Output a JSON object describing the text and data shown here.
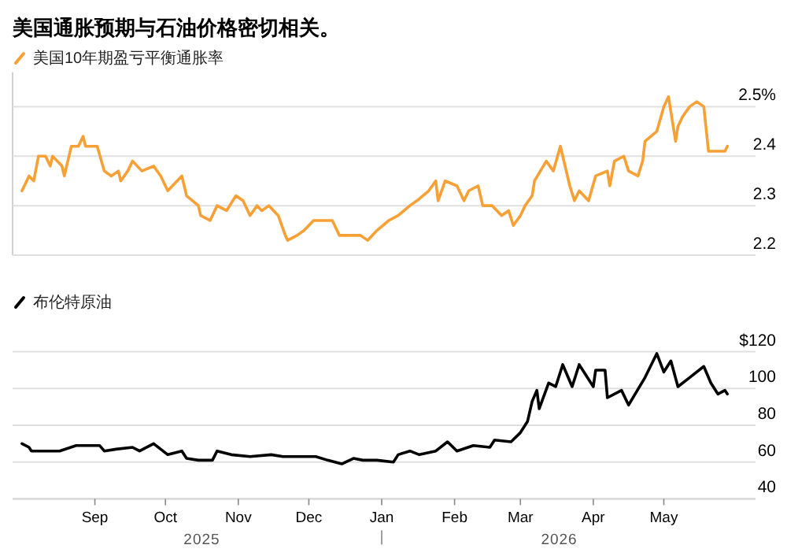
{
  "chart_data": [
    {
      "type": "line",
      "title": "美国通胀预期与石油价格密切相关。",
      "legend": "top left",
      "grid": "y",
      "tick_labels": "y",
      "xlim": [
        "2025-07-28",
        "2026-06-09"
      ],
      "ylim": [
        2.2,
        2.57
      ],
      "yticks": [
        {
          "value": 2.5,
          "label": "2.5%"
        },
        2.4,
        2.3,
        2.2
      ],
      "series": [
        {
          "name": "美国10年期盈亏平衡通胀率",
          "color": "#f7a035",
          "x": [
            "2025-08-01",
            "2025-08-04",
            "2025-08-06",
            "2025-08-08",
            "2025-08-11",
            "2025-08-13",
            "2025-08-14",
            "2025-08-18",
            "2025-08-19",
            "2025-08-22",
            "2025-08-25",
            "2025-08-27",
            "2025-08-28",
            "2025-09-02",
            "2025-09-05",
            "2025-09-08",
            "2025-09-11",
            "2025-09-12",
            "2025-09-15",
            "2025-09-17",
            "2025-09-21",
            "2025-09-26",
            "2025-09-29",
            "2025-10-02",
            "2025-10-08",
            "2025-10-10",
            "2025-10-15",
            "2025-10-16",
            "2025-10-20",
            "2025-10-23",
            "2025-10-27",
            "2025-10-31",
            "2025-11-03",
            "2025-11-06",
            "2025-11-09",
            "2025-11-11",
            "2025-11-14",
            "2025-11-18",
            "2025-11-21",
            "2025-11-22",
            "2025-11-26",
            "2025-11-29",
            "2025-12-03",
            "2025-12-11",
            "2025-12-14",
            "2025-12-19",
            "2025-12-23",
            "2025-12-26",
            "2025-12-30",
            "2026-01-04",
            "2026-01-08",
            "2026-01-13",
            "2026-01-16",
            "2026-01-21",
            "2026-01-24",
            "2026-01-25",
            "2026-01-28",
            "2026-02-02",
            "2026-02-05",
            "2026-02-07",
            "2026-02-11",
            "2026-02-13",
            "2026-02-17",
            "2026-02-21",
            "2026-02-24",
            "2026-02-26",
            "2026-03-01",
            "2026-03-03",
            "2026-03-06",
            "2026-03-07",
            "2026-03-12",
            "2026-03-15",
            "2026-03-18",
            "2026-03-22",
            "2026-03-24",
            "2026-03-26",
            "2026-03-30",
            "2026-04-02",
            "2026-04-07",
            "2026-04-08",
            "2026-04-10",
            "2026-04-14",
            "2026-04-16",
            "2026-04-20",
            "2026-04-22",
            "2026-04-23",
            "2026-04-28",
            "2026-05-01",
            "2026-05-03",
            "2026-05-06",
            "2026-05-07",
            "2026-05-09",
            "2026-05-12",
            "2026-05-15",
            "2026-05-18",
            "2026-05-20",
            "2026-05-22",
            "2026-05-27",
            "2026-05-28"
          ],
          "values": [
            2.33,
            2.36,
            2.35,
            2.4,
            2.4,
            2.38,
            2.4,
            2.38,
            2.36,
            2.42,
            2.42,
            2.44,
            2.42,
            2.42,
            2.37,
            2.36,
            2.37,
            2.35,
            2.37,
            2.39,
            2.37,
            2.38,
            2.36,
            2.33,
            2.36,
            2.32,
            2.3,
            2.28,
            2.27,
            2.3,
            2.29,
            2.32,
            2.31,
            2.28,
            2.3,
            2.29,
            2.3,
            2.28,
            2.24,
            2.23,
            2.24,
            2.25,
            2.27,
            2.27,
            2.24,
            2.24,
            2.24,
            2.23,
            2.25,
            2.27,
            2.28,
            2.3,
            2.31,
            2.33,
            2.35,
            2.31,
            2.35,
            2.34,
            2.31,
            2.33,
            2.34,
            2.3,
            2.3,
            2.28,
            2.29,
            2.26,
            2.28,
            2.3,
            2.32,
            2.35,
            2.39,
            2.37,
            2.42,
            2.34,
            2.31,
            2.33,
            2.31,
            2.36,
            2.37,
            2.34,
            2.39,
            2.4,
            2.37,
            2.36,
            2.39,
            2.43,
            2.45,
            2.5,
            2.52,
            2.43,
            2.46,
            2.48,
            2.5,
            2.51,
            2.5,
            2.41,
            2.41,
            2.41,
            2.42
          ]
        }
      ]
    },
    {
      "type": "line",
      "legend": "top left",
      "grid": "y",
      "xlim": [
        "2025-07-28",
        "2026-06-09"
      ],
      "ylim": [
        40,
        120
      ],
      "xticks": [
        {
          "value": "2025-09-01",
          "label": "Sep"
        },
        {
          "value": "2025-10-01",
          "label": "Oct"
        },
        {
          "value": "2025-11-01",
          "label": "Nov"
        },
        {
          "value": "2025-12-01",
          "label": "Dec"
        },
        {
          "value": "2026-01-01",
          "label": "Jan"
        },
        {
          "value": "2026-02-01",
          "label": "Feb"
        },
        {
          "value": "2026-03-01",
          "label": "Mar"
        },
        {
          "value": "2026-04-01",
          "label": "Apr"
        },
        {
          "value": "2026-05-01",
          "label": "May"
        }
      ],
      "yticks": [
        {
          "value": 120,
          "label": "$120"
        },
        100,
        80,
        60,
        40
      ],
      "annotations": [
        "2025",
        "2026"
      ],
      "series": [
        {
          "name": "布伦特原油",
          "color": "#000000",
          "x": [
            "2025-08-01",
            "2025-08-04",
            "2025-08-05",
            "2025-08-13",
            "2025-08-17",
            "2025-08-24",
            "2025-08-28",
            "2025-09-03",
            "2025-09-05",
            "2025-09-10",
            "2025-09-17",
            "2025-09-20",
            "2025-09-26",
            "2025-10-02",
            "2025-10-08",
            "2025-10-10",
            "2025-10-15",
            "2025-10-21",
            "2025-10-23",
            "2025-10-29",
            "2025-11-06",
            "2025-11-15",
            "2025-11-20",
            "2025-11-29",
            "2025-12-04",
            "2025-12-09",
            "2025-12-15",
            "2025-12-20",
            "2025-12-24",
            "2025-12-30",
            "2026-01-06",
            "2026-01-08",
            "2026-01-13",
            "2026-01-17",
            "2026-01-24",
            "2026-01-29",
            "2026-02-02",
            "2026-02-09",
            "2026-02-16",
            "2026-02-18",
            "2026-02-25",
            "2026-03-01",
            "2026-03-04",
            "2026-03-06",
            "2026-03-08",
            "2026-03-09",
            "2026-03-13",
            "2026-03-16",
            "2026-03-19",
            "2026-03-23",
            "2026-03-26",
            "2026-04-01",
            "2026-04-02",
            "2026-04-06",
            "2026-04-07",
            "2026-04-13",
            "2026-04-16",
            "2026-04-23",
            "2026-04-28",
            "2026-05-01",
            "2026-05-04",
            "2026-05-07",
            "2026-05-12",
            "2026-05-18",
            "2026-05-21",
            "2026-05-24",
            "2026-05-27",
            "2026-05-28"
          ],
          "values": [
            70,
            68,
            66,
            66,
            66,
            69,
            69,
            69,
            66,
            67,
            68,
            66,
            70,
            64,
            66,
            62,
            61,
            61,
            66,
            64,
            63,
            64,
            63,
            63,
            63,
            61,
            59,
            62,
            61,
            61,
            60,
            64,
            66,
            64,
            66,
            71,
            66,
            69,
            68,
            72,
            71,
            76,
            82,
            93,
            99,
            89,
            103,
            101,
            113,
            101,
            113,
            101,
            110,
            110,
            95,
            99,
            91,
            106,
            119,
            109,
            115,
            101,
            106,
            112,
            103,
            97,
            99,
            97
          ]
        }
      ]
    }
  ]
}
